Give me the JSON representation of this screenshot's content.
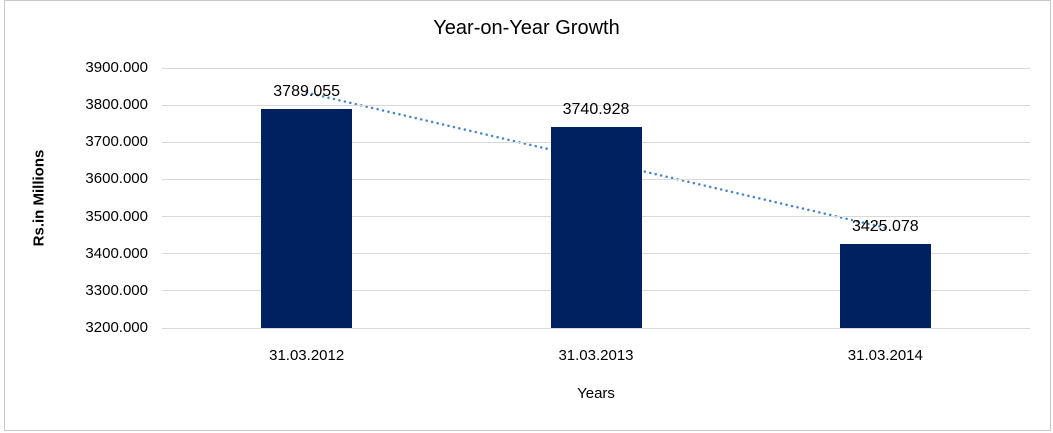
{
  "chart_data": {
    "type": "bar",
    "title": "Year-on-Year Growth",
    "xlabel": "Years",
    "ylabel": "Rs.in Millions",
    "categories": [
      "31.03.2012",
      "31.03.2013",
      "31.03.2014"
    ],
    "values": [
      3789.055,
      3740.928,
      3425.078
    ],
    "value_labels": [
      "3789.055",
      "3740.928",
      "3425.078"
    ],
    "ylim": [
      3200,
      3900
    ],
    "ytick_step": 100,
    "ytick_labels": [
      "3900.000",
      "3800.000",
      "3700.000",
      "3600.000",
      "3500.000",
      "3400.000",
      "3300.000",
      "3200.000"
    ],
    "grid": true,
    "legend_position": "none",
    "trendline": {
      "type": "linear",
      "style": "dotted"
    },
    "colors": {
      "bar": "#002160",
      "trendline": "#4a86c8",
      "gridline": "#d9d9d9",
      "frame_border": "#c9c9c9",
      "text": "#000000",
      "background": "#ffffff"
    }
  }
}
